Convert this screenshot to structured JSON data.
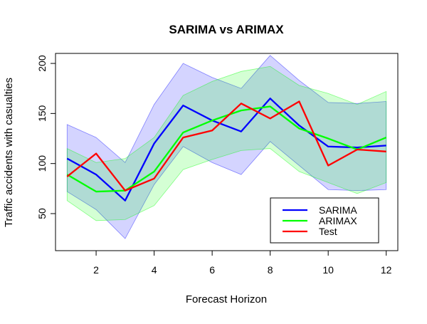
{
  "chart_data": {
    "type": "line",
    "title": "SARIMA vs ARIMAX",
    "xlabel": "Forecast Horizon",
    "ylabel": "Traffic accidents with casualties",
    "x": [
      1,
      2,
      3,
      4,
      5,
      6,
      7,
      8,
      9,
      10,
      11,
      12
    ],
    "xlim": [
      0.6,
      12.4
    ],
    "ylim": [
      13,
      210
    ],
    "xticks": [
      2,
      4,
      6,
      8,
      10,
      12
    ],
    "yticks": [
      50,
      100,
      150,
      200
    ],
    "grid": false,
    "legend_position": "bottom-right",
    "bands": [
      {
        "name": "SARIMA",
        "fill": "#0000ff",
        "fill_opacity": 0.17,
        "upper": [
          139,
          126,
          101,
          159,
          200,
          186,
          175,
          208,
          183,
          161,
          160,
          162
        ],
        "lower": [
          72,
          54,
          25,
          79,
          117,
          101,
          89,
          122,
          98,
          74,
          73,
          74
        ]
      },
      {
        "name": "ARIMAX",
        "fill": "#00ff00",
        "fill_opacity": 0.17,
        "upper": [
          115,
          101,
          105,
          126,
          168,
          182,
          192,
          197,
          178,
          170,
          159,
          172
        ],
        "lower": [
          63,
          43,
          44,
          58,
          94,
          104,
          113,
          115,
          92,
          81,
          70,
          81
        ]
      }
    ],
    "series": [
      {
        "name": "SARIMA",
        "color": "#0000ff",
        "values": [
          105,
          89,
          63,
          120,
          158,
          143,
          132,
          165,
          138,
          117,
          116,
          118
        ]
      },
      {
        "name": "ARIMAX",
        "color": "#00ff00",
        "values": [
          89,
          72,
          73,
          92,
          131,
          143,
          153,
          157,
          135,
          125,
          114,
          126
        ]
      },
      {
        "name": "Test",
        "color": "#ff0000",
        "values": [
          87,
          110,
          73,
          85,
          126,
          133,
          160,
          145,
          162,
          98,
          114,
          112
        ]
      }
    ]
  }
}
